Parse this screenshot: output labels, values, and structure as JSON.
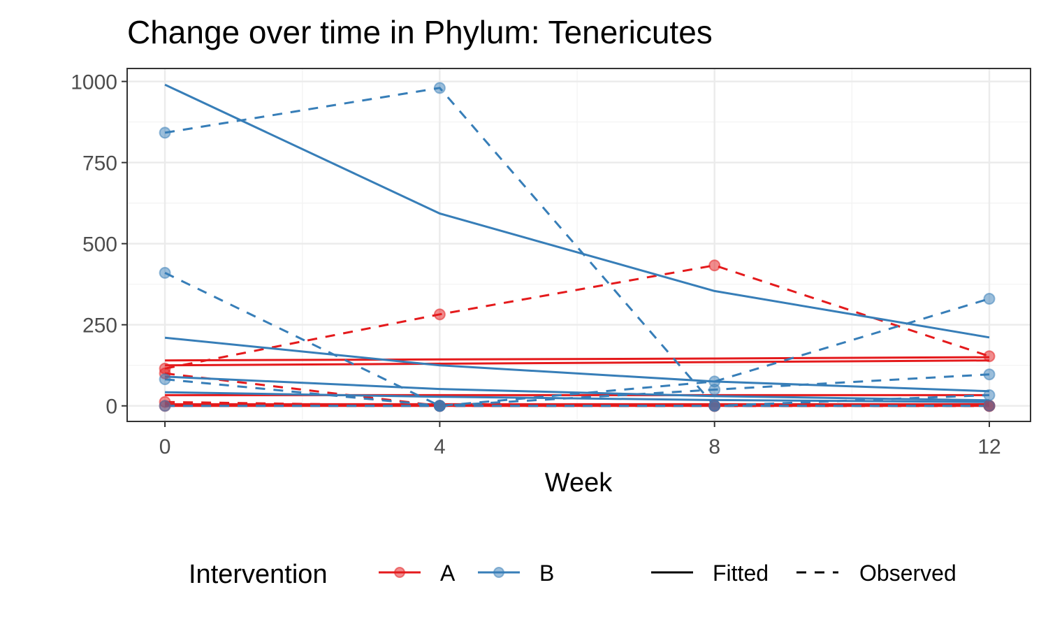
{
  "chart_data": {
    "type": "line",
    "title": "Change over time in Phylum: Tenericutes",
    "xlabel": "Week",
    "ylabel": "",
    "x_ticks": [
      0,
      4,
      8,
      12
    ],
    "y_ticks": [
      0,
      250,
      500,
      750,
      1000
    ],
    "xlim": [
      -0.55,
      12.6
    ],
    "ylim": [
      -48,
      1040
    ],
    "grid": true,
    "legend_position": "bottom",
    "legend": {
      "title": "Intervention",
      "groups": [
        {
          "label": "A",
          "color": "#E41A1C"
        },
        {
          "label": "B",
          "color": "#377EB8"
        }
      ],
      "types": [
        {
          "label": "Fitted",
          "dash": "solid"
        },
        {
          "label": "Observed",
          "dash": "dashed"
        }
      ]
    },
    "series": [
      {
        "group": "A",
        "type": "Observed",
        "x": [
          0,
          4,
          8,
          12
        ],
        "y": [
          115,
          282,
          433,
          153
        ]
      },
      {
        "group": "A",
        "type": "Observed",
        "x": [
          0,
          4,
          8,
          12
        ],
        "y": [
          100,
          0,
          0,
          0
        ]
      },
      {
        "group": "A",
        "type": "Observed",
        "x": [
          0,
          4,
          8,
          12
        ],
        "y": [
          12,
          0,
          0,
          0
        ]
      },
      {
        "group": "A",
        "type": "Observed",
        "x": [
          0,
          4,
          8,
          12
        ],
        "y": [
          0,
          0,
          0,
          0
        ]
      },
      {
        "group": "A",
        "type": "Fitted",
        "x": [
          0,
          4,
          8,
          12
        ],
        "y": [
          140,
          143,
          146,
          150
        ]
      },
      {
        "group": "A",
        "type": "Fitted",
        "x": [
          0,
          4,
          8,
          12
        ],
        "y": [
          125,
          130,
          135,
          140
        ]
      },
      {
        "group": "A",
        "type": "Fitted",
        "x": [
          0,
          4,
          8,
          12
        ],
        "y": [
          33,
          33,
          33,
          33
        ]
      },
      {
        "group": "A",
        "type": "Fitted",
        "x": [
          0,
          4,
          8,
          12
        ],
        "y": [
          5,
          5,
          5,
          5
        ]
      },
      {
        "group": "A",
        "type": "Fitted",
        "x": [
          0,
          4,
          8,
          12
        ],
        "y": [
          0,
          0,
          0,
          0
        ]
      },
      {
        "group": "B",
        "type": "Observed",
        "x": [
          0,
          4,
          8,
          12
        ],
        "y": [
          842,
          980,
          0,
          0
        ]
      },
      {
        "group": "B",
        "type": "Observed",
        "x": [
          0,
          4,
          8,
          12
        ],
        "y": [
          410,
          0,
          75,
          330
        ]
      },
      {
        "group": "B",
        "type": "Observed",
        "x": [
          0,
          4,
          8,
          12
        ],
        "y": [
          82,
          0,
          50,
          97
        ]
      },
      {
        "group": "B",
        "type": "Observed",
        "x": [
          0,
          4,
          8,
          12
        ],
        "y": [
          0,
          0,
          0,
          33
        ]
      },
      {
        "group": "B",
        "type": "Fitted",
        "x": [
          0,
          4,
          8,
          12
        ],
        "y": [
          990,
          593,
          354,
          211
        ]
      },
      {
        "group": "B",
        "type": "Fitted",
        "x": [
          0,
          4,
          8,
          12
        ],
        "y": [
          210,
          125,
          75,
          45
        ]
      },
      {
        "group": "B",
        "type": "Fitted",
        "x": [
          0,
          4,
          8,
          12
        ],
        "y": [
          90,
          52,
          30,
          17
        ]
      },
      {
        "group": "B",
        "type": "Fitted",
        "x": [
          0,
          4,
          8,
          12
        ],
        "y": [
          42,
          28,
          18,
          12
        ]
      }
    ]
  }
}
